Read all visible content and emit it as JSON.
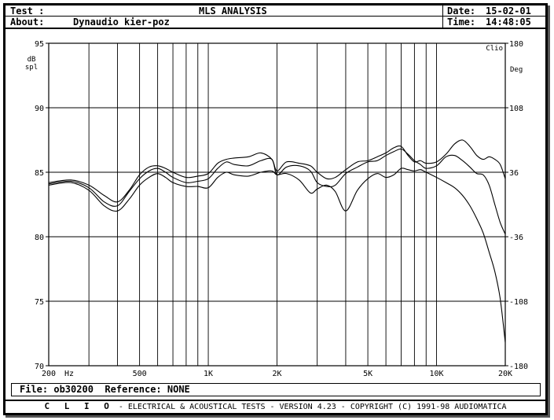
{
  "header": {
    "test_label": "Test :",
    "title": "MLS ANALYSIS",
    "date_label": "Date:",
    "date_value": "15-02-01",
    "about_label": "About:",
    "about_value": "Dynaudio kier-poz",
    "time_label": "Time:",
    "time_value": "14:48:05"
  },
  "file_bar": {
    "file_label": "File:",
    "file_value": "ob30200",
    "reference_label": "Reference:",
    "reference_value": "NONE"
  },
  "footer": {
    "brand": "C L I O",
    "text": "- ELECTRICAL & ACOUSTICAL TESTS - VERSION 4.23 - COPYRIGHT (C) 1991-98 AUDIOMATICA"
  },
  "chart_data": {
    "type": "line",
    "title": "",
    "xlabel": "Hz",
    "ylabel": "dB spl",
    "y2label": "Deg",
    "corner_label": "Clio",
    "x_scale": "log",
    "xlim": [
      200,
      20000
    ],
    "ylim": [
      70,
      95
    ],
    "y2lim": [
      -180,
      180
    ],
    "grid": true,
    "x_ticks": [
      {
        "value": 200,
        "label": "200"
      },
      {
        "value": 500,
        "label": "500"
      },
      {
        "value": 1000,
        "label": "1K"
      },
      {
        "value": 2000,
        "label": "2K"
      },
      {
        "value": 5000,
        "label": "5K"
      },
      {
        "value": 10000,
        "label": "10K"
      },
      {
        "value": 20000,
        "label": "20K"
      }
    ],
    "x_minor": [
      300,
      400,
      600,
      700,
      800,
      900,
      3000,
      4000,
      6000,
      7000,
      8000,
      9000
    ],
    "y_ticks": [
      {
        "value": 95,
        "label": "95"
      },
      {
        "value": 90,
        "label": "90"
      },
      {
        "value": 85,
        "label": "85"
      },
      {
        "value": 80,
        "label": "80"
      },
      {
        "value": 75,
        "label": "75"
      },
      {
        "value": 70,
        "label": "70"
      }
    ],
    "y2_ticks": [
      {
        "value": 180,
        "label": "180"
      },
      {
        "value": 108,
        "label": "108"
      },
      {
        "value": 36,
        "label": "36"
      },
      {
        "value": -36,
        "label": "-36"
      },
      {
        "value": -108,
        "label": "-108"
      },
      {
        "value": -180,
        "label": "-180"
      }
    ],
    "series": [
      {
        "x": [
          200,
          250,
          300,
          350,
          400,
          450,
          500,
          550,
          600,
          650,
          700,
          800,
          900,
          1000,
          1100,
          1200,
          1300,
          1500,
          1700,
          1900,
          2000,
          2200,
          2500,
          2800,
          3000,
          3300,
          3600,
          4000,
          4500,
          5000,
          5500,
          6000,
          6500,
          7000,
          7500,
          8000,
          8500,
          9000,
          10000,
          11000,
          12000,
          13000,
          14000,
          15000,
          16000,
          17000,
          18000,
          19000,
          20000
        ],
        "values": [
          84.2,
          84.4,
          84.0,
          83.2,
          82.7,
          83.6,
          84.8,
          85.4,
          85.5,
          85.3,
          85.0,
          84.6,
          84.7,
          84.9,
          85.7,
          86.0,
          86.1,
          86.2,
          86.5,
          86.0,
          85.1,
          85.8,
          85.7,
          85.5,
          85.0,
          84.5,
          84.6,
          85.2,
          85.8,
          85.9,
          86.2,
          86.5,
          86.9,
          87.0,
          86.3,
          85.8,
          85.9,
          85.7,
          85.8,
          86.4,
          87.2,
          87.5,
          87.0,
          86.3,
          86.0,
          86.2,
          86.0,
          85.6,
          84.5
        ]
      },
      {
        "x": [
          200,
          250,
          300,
          350,
          400,
          450,
          500,
          550,
          600,
          650,
          700,
          800,
          900,
          1000,
          1100,
          1200,
          1300,
          1500,
          1700,
          1900,
          2000,
          2200,
          2500,
          2800,
          3000,
          3300,
          3600,
          4000,
          4500,
          5000,
          5500,
          6000,
          6500,
          7000,
          7500,
          8000,
          8500,
          9000,
          10000,
          11000,
          12000,
          13000,
          14000,
          15000,
          16000,
          17000,
          18000,
          19000,
          20000
        ],
        "values": [
          84.1,
          84.3,
          83.8,
          82.7,
          82.4,
          83.5,
          84.5,
          85.1,
          85.3,
          85.0,
          84.6,
          84.2,
          84.3,
          84.5,
          85.3,
          85.8,
          85.6,
          85.5,
          85.9,
          86.0,
          84.8,
          85.4,
          85.5,
          85.1,
          84.2,
          83.9,
          84.0,
          84.9,
          85.4,
          85.8,
          85.9,
          86.3,
          86.6,
          86.8,
          86.4,
          85.9,
          85.6,
          85.3,
          85.5,
          86.2,
          86.3,
          85.9,
          85.4,
          84.9,
          84.8,
          84.0,
          82.5,
          81.1,
          80.2
        ]
      },
      {
        "x": [
          200,
          250,
          300,
          350,
          400,
          450,
          500,
          550,
          600,
          650,
          700,
          800,
          900,
          1000,
          1100,
          1200,
          1300,
          1500,
          1700,
          1900,
          2000,
          2200,
          2500,
          2800,
          3000,
          3300,
          3600,
          4000,
          4500,
          5000,
          5500,
          6000,
          6500,
          7000,
          7500,
          8000,
          8500,
          9000,
          10000,
          11000,
          12000,
          13000,
          14000,
          15000,
          16000,
          17000,
          18000,
          19000,
          20000
        ],
        "values": [
          84.0,
          84.2,
          83.6,
          82.4,
          82.0,
          82.9,
          84.0,
          84.6,
          84.9,
          84.6,
          84.2,
          83.9,
          83.9,
          83.8,
          84.6,
          85.0,
          84.8,
          84.7,
          85.0,
          85.1,
          84.8,
          84.9,
          84.4,
          83.4,
          83.7,
          84.0,
          83.5,
          82.0,
          83.6,
          84.5,
          84.9,
          84.6,
          84.8,
          85.3,
          85.2,
          85.1,
          85.2,
          85.0,
          84.6,
          84.2,
          83.8,
          83.2,
          82.4,
          81.4,
          80.3,
          78.8,
          77.3,
          75.2,
          71.8
        ]
      }
    ]
  }
}
